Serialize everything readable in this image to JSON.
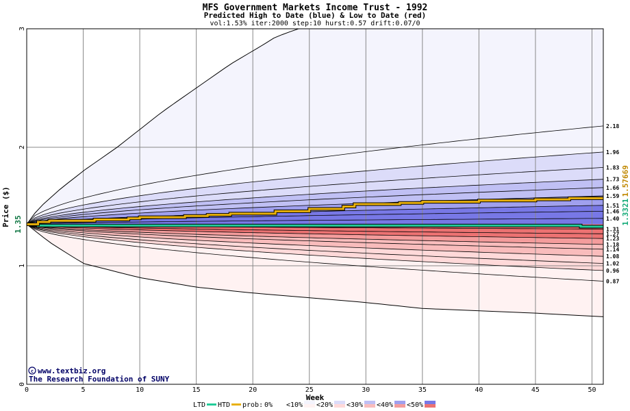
{
  "chart_data": {
    "type": "area",
    "title": "MFS Government Markets Income Trust - 1992",
    "subtitle": "Predicted High to Date (blue) &  Low to Date (red)",
    "params": "vol:1.53% iter:2000 step:10 hurst:0.57 drift:0.07/0",
    "xlabel": "Week",
    "ylabel": "Price ($)",
    "xlim": [
      0,
      51
    ],
    "ylim": [
      0,
      3
    ],
    "x_ticks": [
      0,
      5,
      10,
      15,
      20,
      25,
      30,
      35,
      40,
      45,
      50
    ],
    "y_ticks": [
      0,
      1,
      2,
      3
    ],
    "start_price": 1.35,
    "start_price_label": "1.35",
    "right_labels": {
      "low": "1.3321",
      "high": "1.57669"
    },
    "colors": {
      "ltd": "#22cc99",
      "htd": "#e8b00c",
      "grid": "#888888"
    },
    "high_quantiles": [
      {
        "label": "1.40",
        "value": 1.4
      },
      {
        "label": "1.46",
        "value": 1.46
      },
      {
        "label": "1.51",
        "value": 1.51
      },
      {
        "label": "1.59",
        "value": 1.59
      },
      {
        "label": "1.66",
        "value": 1.66
      },
      {
        "label": "1.73",
        "value": 1.73
      },
      {
        "label": "1.83",
        "value": 1.83
      },
      {
        "label": "1.96",
        "value": 1.96
      },
      {
        "label": "2.18",
        "value": 2.18
      }
    ],
    "max_curve": [
      [
        0,
        1.35
      ],
      [
        1,
        1.48
      ],
      [
        3,
        1.65
      ],
      [
        5,
        1.8
      ],
      [
        8,
        2.0
      ],
      [
        10,
        2.15
      ],
      [
        12,
        2.3
      ],
      [
        15,
        2.5
      ],
      [
        18,
        2.7
      ],
      [
        21,
        2.87
      ],
      [
        22,
        2.93
      ],
      [
        24,
        3.0
      ]
    ],
    "low_quantiles": [
      {
        "label": "1.31",
        "value": 1.31
      },
      {
        "label": "1.27",
        "value": 1.27
      },
      {
        "label": "1.23",
        "value": 1.23
      },
      {
        "label": "1.18",
        "value": 1.18
      },
      {
        "label": "1.14",
        "value": 1.14
      },
      {
        "label": "1.08",
        "value": 1.08
      },
      {
        "label": "1.02",
        "value": 1.02
      },
      {
        "label": "0.96",
        "value": 0.96
      },
      {
        "label": "0.87",
        "value": 0.87
      }
    ],
    "min_curve": [
      [
        0,
        1.35
      ],
      [
        2,
        1.2
      ],
      [
        5,
        1.02
      ],
      [
        10,
        0.9
      ],
      [
        15,
        0.82
      ],
      [
        20,
        0.77
      ],
      [
        25,
        0.73
      ],
      [
        30,
        0.69
      ],
      [
        35,
        0.64
      ],
      [
        40,
        0.62
      ],
      [
        45,
        0.6
      ],
      [
        51,
        0.57
      ]
    ],
    "htd_series": {
      "name": "HTD",
      "x": [
        0,
        1,
        2,
        4,
        6,
        9,
        10,
        14,
        16,
        18,
        22,
        25,
        28,
        29,
        33,
        35,
        37,
        40,
        45,
        48,
        51
      ],
      "y": [
        1.35,
        1.37,
        1.38,
        1.38,
        1.39,
        1.4,
        1.41,
        1.42,
        1.43,
        1.44,
        1.46,
        1.48,
        1.5,
        1.52,
        1.53,
        1.54,
        1.54,
        1.55,
        1.56,
        1.57,
        1.57
      ]
    },
    "ltd_series": {
      "name": "LTD",
      "x": [
        0,
        1,
        2,
        10,
        20,
        30,
        40,
        48,
        49,
        51
      ],
      "y": [
        1.35,
        1.34,
        1.34,
        1.34,
        1.34,
        1.34,
        1.34,
        1.34,
        1.33,
        1.33
      ]
    },
    "legend": {
      "placement": "bottom",
      "ltd": "LTD",
      "htd": "HTD",
      "prob": "prob:",
      "bins": [
        {
          "label": "0%",
          "blue": "#ffffff",
          "red": "#ffffff"
        },
        {
          "label": "<10%",
          "blue": "#f4f4fd",
          "red": "#fff2f2"
        },
        {
          "label": "<20%",
          "blue": "#dcdcf9",
          "red": "#ffd9d9"
        },
        {
          "label": "<30%",
          "blue": "#c0c0f4",
          "red": "#f9bcbc"
        },
        {
          "label": "<40%",
          "blue": "#a0a0ee",
          "red": "#f49c9c"
        },
        {
          "label": "<50%",
          "blue": "#7878e6",
          "red": "#ec7272"
        }
      ]
    },
    "credits": [
      "www.textbiz.org",
      "The Research Foundation of SUNY"
    ]
  }
}
